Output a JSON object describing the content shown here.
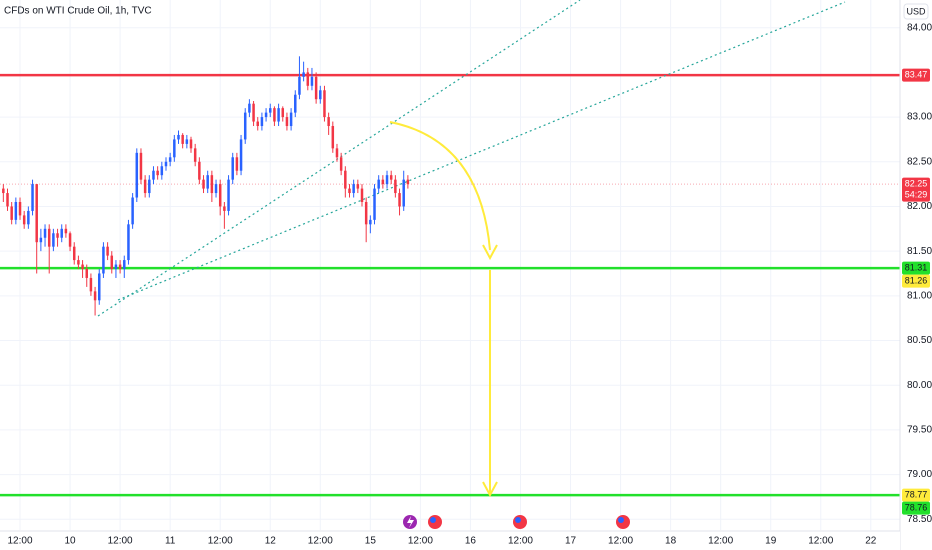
{
  "chart_data": {
    "type": "candlestick",
    "title": "CFDs on WTI Crude Oil, 1h, TVC",
    "currency": "USD",
    "up_color": "#2962ff",
    "down_color": "#f23645",
    "candles": [
      [
        82.2,
        82.25,
        82.05,
        82.15
      ],
      [
        82.15,
        82.2,
        81.95,
        82.0
      ],
      [
        82.0,
        82.05,
        81.8,
        81.85
      ],
      [
        81.85,
        82.1,
        81.8,
        82.05
      ],
      [
        82.05,
        82.1,
        81.85,
        81.9
      ],
      [
        81.9,
        81.95,
        81.75,
        81.8
      ],
      [
        81.8,
        82.0,
        81.75,
        81.95
      ],
      [
        81.95,
        82.3,
        81.9,
        82.25
      ],
      [
        82.25,
        82.25,
        81.25,
        81.6
      ],
      [
        81.6,
        81.75,
        81.5,
        81.65
      ],
      [
        81.65,
        81.8,
        81.55,
        81.75
      ],
      [
        81.75,
        81.8,
        81.25,
        81.55
      ],
      [
        81.55,
        81.75,
        81.5,
        81.7
      ],
      [
        81.7,
        81.75,
        81.55,
        81.65
      ],
      [
        81.65,
        81.8,
        81.6,
        81.75
      ],
      [
        81.75,
        81.8,
        81.65,
        81.7
      ],
      [
        81.7,
        81.72,
        81.5,
        81.55
      ],
      [
        81.55,
        81.6,
        81.35,
        81.4
      ],
      [
        81.4,
        81.45,
        81.3,
        81.35
      ],
      [
        81.35,
        81.4,
        81.2,
        81.3
      ],
      [
        81.3,
        81.35,
        81.1,
        81.2
      ],
      [
        81.2,
        81.25,
        81.0,
        81.05
      ],
      [
        81.05,
        81.1,
        80.78,
        80.95
      ],
      [
        80.95,
        81.3,
        80.9,
        81.25
      ],
      [
        81.25,
        81.6,
        81.2,
        81.55
      ],
      [
        81.55,
        81.6,
        81.4,
        81.45
      ],
      [
        81.45,
        81.5,
        81.25,
        81.3
      ],
      [
        81.3,
        81.4,
        81.2,
        81.35
      ],
      [
        81.35,
        81.4,
        81.25,
        81.3
      ],
      [
        81.3,
        81.45,
        81.2,
        81.4
      ],
      [
        81.4,
        81.85,
        81.35,
        81.8
      ],
      [
        81.8,
        82.15,
        81.75,
        82.1
      ],
      [
        82.1,
        82.65,
        82.05,
        82.6
      ],
      [
        82.6,
        82.65,
        82.25,
        82.3
      ],
      [
        82.3,
        82.35,
        82.1,
        82.15
      ],
      [
        82.15,
        82.35,
        82.1,
        82.3
      ],
      [
        82.3,
        82.45,
        82.25,
        82.4
      ],
      [
        82.4,
        82.45,
        82.3,
        82.35
      ],
      [
        82.35,
        82.5,
        82.3,
        82.45
      ],
      [
        82.45,
        82.55,
        82.4,
        82.5
      ],
      [
        82.5,
        82.6,
        82.45,
        82.55
      ],
      [
        82.55,
        82.8,
        82.5,
        82.75
      ],
      [
        82.75,
        82.85,
        82.7,
        82.8
      ],
      [
        82.8,
        82.82,
        82.65,
        82.7
      ],
      [
        82.7,
        82.8,
        82.65,
        82.75
      ],
      [
        82.75,
        82.78,
        82.6,
        82.65
      ],
      [
        82.65,
        82.7,
        82.45,
        82.5
      ],
      [
        82.5,
        82.55,
        82.25,
        82.3
      ],
      [
        82.3,
        82.35,
        82.15,
        82.2
      ],
      [
        82.2,
        82.4,
        82.15,
        82.35
      ],
      [
        82.35,
        82.4,
        82.05,
        82.15
      ],
      [
        82.15,
        82.3,
        82.1,
        82.25
      ],
      [
        82.25,
        82.3,
        81.9,
        82.0
      ],
      [
        82.0,
        82.05,
        81.75,
        81.95
      ],
      [
        81.95,
        82.35,
        81.9,
        82.3
      ],
      [
        82.3,
        82.6,
        82.25,
        82.55
      ],
      [
        82.55,
        82.6,
        82.35,
        82.4
      ],
      [
        82.4,
        82.8,
        82.35,
        82.75
      ],
      [
        82.75,
        83.1,
        82.7,
        83.05
      ],
      [
        83.05,
        83.2,
        83.0,
        83.15
      ],
      [
        83.15,
        83.18,
        82.9,
        82.95
      ],
      [
        82.95,
        83.0,
        82.85,
        82.9
      ],
      [
        82.9,
        83.05,
        82.85,
        83.0
      ],
      [
        83.0,
        83.1,
        82.95,
        83.05
      ],
      [
        83.05,
        83.15,
        83.0,
        83.1
      ],
      [
        83.1,
        83.12,
        82.9,
        82.95
      ],
      [
        82.95,
        83.15,
        82.9,
        83.1
      ],
      [
        83.1,
        83.12,
        82.95,
        83.0
      ],
      [
        83.0,
        83.05,
        82.85,
        82.9
      ],
      [
        82.9,
        83.1,
        82.85,
        83.05
      ],
      [
        83.05,
        83.3,
        83.0,
        83.25
      ],
      [
        83.25,
        83.68,
        83.2,
        83.45
      ],
      [
        83.45,
        83.62,
        83.4,
        83.5
      ],
      [
        83.5,
        83.55,
        83.3,
        83.35
      ],
      [
        83.35,
        83.55,
        83.3,
        83.45
      ],
      [
        83.45,
        83.5,
        83.15,
        83.2
      ],
      [
        83.2,
        83.35,
        83.15,
        83.3
      ],
      [
        83.3,
        83.35,
        82.95,
        83.0
      ],
      [
        83.0,
        83.05,
        82.8,
        82.9
      ],
      [
        82.9,
        82.95,
        82.6,
        82.65
      ],
      [
        82.65,
        82.7,
        82.5,
        82.55
      ],
      [
        82.55,
        82.6,
        82.35,
        82.4
      ],
      [
        82.4,
        82.45,
        82.1,
        82.2
      ],
      [
        82.2,
        82.25,
        82.1,
        82.15
      ],
      [
        82.15,
        82.3,
        82.1,
        82.25
      ],
      [
        82.25,
        82.3,
        82.15,
        82.2
      ],
      [
        82.2,
        82.25,
        82.0,
        82.05
      ],
      [
        82.05,
        82.1,
        81.6,
        81.8
      ],
      [
        81.8,
        81.9,
        81.7,
        81.85
      ],
      [
        81.85,
        82.25,
        81.8,
        82.2
      ],
      [
        82.2,
        82.35,
        82.15,
        82.3
      ],
      [
        82.3,
        82.35,
        82.2,
        82.25
      ],
      [
        82.25,
        82.4,
        82.2,
        82.35
      ],
      [
        82.35,
        82.4,
        82.25,
        82.3
      ],
      [
        82.3,
        82.35,
        82.1,
        82.15
      ],
      [
        82.15,
        82.2,
        81.9,
        82.0
      ],
      [
        82.0,
        82.4,
        81.95,
        82.3
      ],
      [
        82.3,
        82.35,
        82.2,
        82.25
      ]
    ],
    "xlim": [
      -0.8,
      215
    ],
    "xticks": [
      {
        "value": 4,
        "label": "12:00"
      },
      {
        "value": 16,
        "label": "10"
      },
      {
        "value": 28,
        "label": "12:00"
      },
      {
        "value": 40,
        "label": "11"
      },
      {
        "value": 52,
        "label": "12:00"
      },
      {
        "value": 64,
        "label": "12"
      },
      {
        "value": 76,
        "label": "12:00"
      },
      {
        "value": 88,
        "label": "15"
      },
      {
        "value": 100,
        "label": "12:00"
      },
      {
        "value": 112,
        "label": "16"
      },
      {
        "value": 124,
        "label": "12:00"
      },
      {
        "value": 136,
        "label": "17"
      },
      {
        "value": 148,
        "label": "12:00"
      },
      {
        "value": 160,
        "label": "18"
      },
      {
        "value": 172,
        "label": "12:00"
      },
      {
        "value": 184,
        "label": "19"
      },
      {
        "value": 196,
        "label": "12:00"
      },
      {
        "value": 208,
        "label": "22"
      }
    ],
    "ylim": [
      78.38,
      84.31
    ],
    "yticks": [
      {
        "value": 84,
        "label": "84.00"
      },
      {
        "value": 83,
        "label": "83.00"
      },
      {
        "value": 82.5,
        "label": "82.50"
      },
      {
        "value": 82,
        "label": "82.00"
      },
      {
        "value": 81.5,
        "label": "81.50"
      },
      {
        "value": 81,
        "label": "81.00"
      },
      {
        "value": 80.5,
        "label": "80.50"
      },
      {
        "value": 80,
        "label": "80.00"
      },
      {
        "value": 79.5,
        "label": "79.50"
      },
      {
        "value": 79,
        "label": "79.00"
      },
      {
        "value": 78.5,
        "label": "78.50"
      }
    ],
    "grid": true,
    "levels": [
      {
        "value": 83.47,
        "color": "#f23645",
        "style": "solid"
      },
      {
        "value": 82.25,
        "color": "#f7a9b0",
        "style": "dotted"
      },
      {
        "value": 81.31,
        "color": "#22e02b",
        "style": "solid"
      },
      {
        "value": 78.77,
        "color": "#22e02b",
        "style": "solid"
      }
    ],
    "badges": [
      {
        "value": 83.47,
        "color": "#f23645",
        "text_color": "#ffffff"
      },
      {
        "value": 82.25,
        "color": "#f23645",
        "text_color": "#ffffff",
        "countdown": "54:29"
      },
      {
        "value": 81.31,
        "color": "#22e02b",
        "text_color": "#131722"
      },
      {
        "value": 81.26,
        "color": "#ffeb3b",
        "text_color": "#131722"
      },
      {
        "value": 78.77,
        "color": "#ffeb3b",
        "text_color": "#131722"
      },
      {
        "value": 78.76,
        "color": "#22e02b",
        "text_color": "#131722"
      }
    ]
  }
}
